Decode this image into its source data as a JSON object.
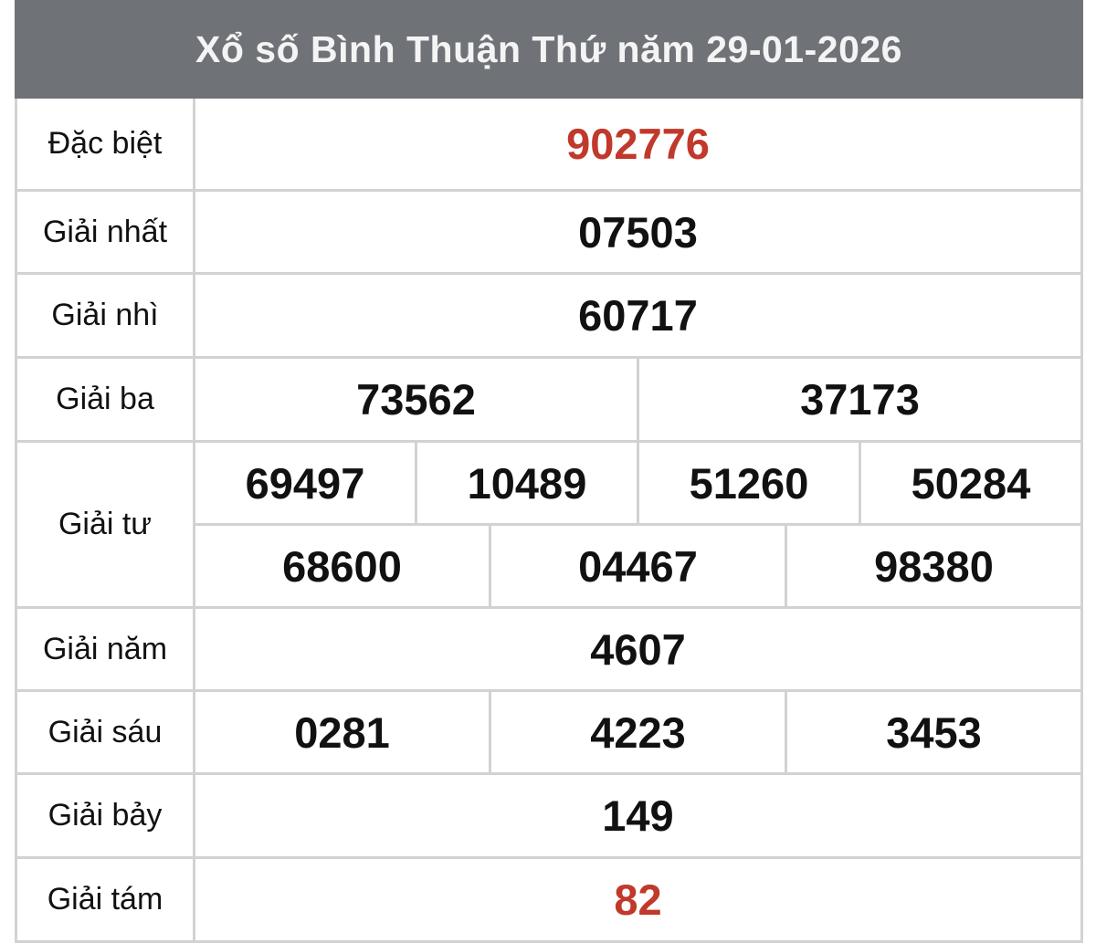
{
  "title": "Xổ số Bình Thuận Thứ năm 29-01-2026",
  "colors": {
    "header_bg": "#6f7377",
    "highlight": "#c0392b"
  },
  "prizes": [
    {
      "label": "Đặc biệt",
      "rows": [
        [
          "902776"
        ]
      ]
    },
    {
      "label": "Giải nhất",
      "rows": [
        [
          "07503"
        ]
      ]
    },
    {
      "label": "Giải nhì",
      "rows": [
        [
          "60717"
        ]
      ]
    },
    {
      "label": "Giải ba",
      "rows": [
        [
          "73562",
          "37173"
        ]
      ]
    },
    {
      "label": "Giải tư",
      "rows": [
        [
          "69497",
          "10489",
          "51260",
          "50284"
        ],
        [
          "68600",
          "04467",
          "98380"
        ]
      ]
    },
    {
      "label": "Giải năm",
      "rows": [
        [
          "4607"
        ]
      ]
    },
    {
      "label": "Giải sáu",
      "rows": [
        [
          "0281",
          "4223",
          "3453"
        ]
      ]
    },
    {
      "label": "Giải bảy",
      "rows": [
        [
          "149"
        ]
      ]
    },
    {
      "label": "Giải tám",
      "rows": [
        [
          "82"
        ]
      ]
    }
  ]
}
